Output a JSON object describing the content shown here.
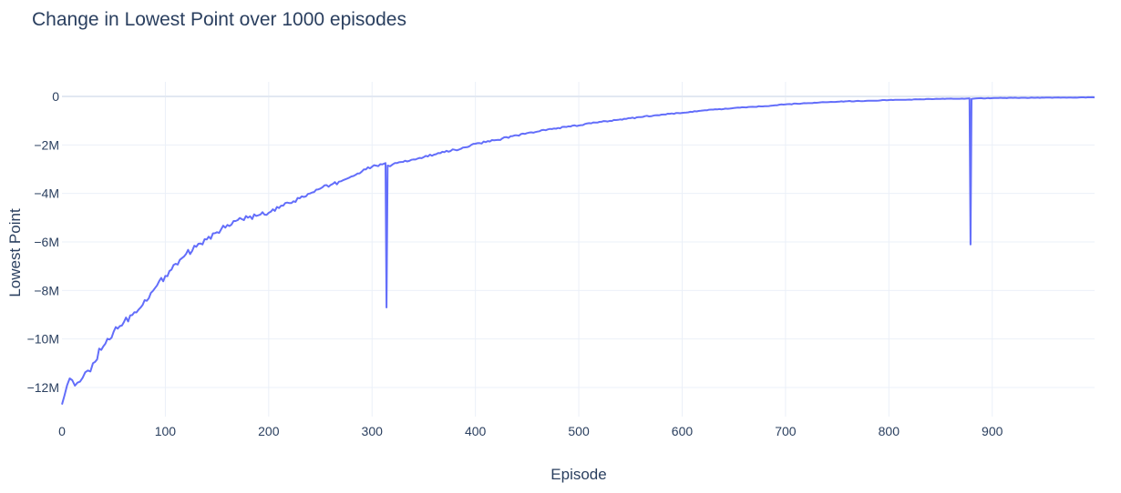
{
  "chart_data": {
    "type": "line",
    "title": "Change in Lowest Point over 1000 episodes",
    "xlabel": "Episode",
    "ylabel": "Lowest Point",
    "xlim": [
      0,
      999
    ],
    "ylim": [
      -13200000,
      600000
    ],
    "grid": true,
    "x_ticks": [
      {
        "value": 0,
        "label": "0"
      },
      {
        "value": 100,
        "label": "100"
      },
      {
        "value": 200,
        "label": "200"
      },
      {
        "value": 300,
        "label": "300"
      },
      {
        "value": 400,
        "label": "400"
      },
      {
        "value": 500,
        "label": "500"
      },
      {
        "value": 600,
        "label": "600"
      },
      {
        "value": 700,
        "label": "700"
      },
      {
        "value": 800,
        "label": "800"
      },
      {
        "value": 900,
        "label": "900"
      }
    ],
    "y_ticks": [
      {
        "value": 0,
        "label": "0"
      },
      {
        "value": -2000000,
        "label": "−2M"
      },
      {
        "value": -4000000,
        "label": "−4M"
      },
      {
        "value": -6000000,
        "label": "−6M"
      },
      {
        "value": -8000000,
        "label": "−8M"
      },
      {
        "value": -10000000,
        "label": "−10M"
      },
      {
        "value": -12000000,
        "label": "−12M"
      }
    ],
    "series": [
      {
        "color": "#636efa",
        "x": [
          0,
          5,
          10,
          15,
          20,
          25,
          30,
          40,
          50,
          60,
          70,
          80,
          90,
          100,
          110,
          120,
          130,
          140,
          150,
          160,
          170,
          180,
          190,
          200,
          210,
          220,
          230,
          240,
          250,
          260,
          270,
          280,
          290,
          300,
          310,
          313,
          314,
          315,
          320,
          330,
          340,
          350,
          360,
          370,
          380,
          390,
          400,
          420,
          440,
          460,
          480,
          500,
          520,
          540,
          560,
          580,
          600,
          620,
          640,
          660,
          680,
          700,
          720,
          740,
          760,
          780,
          800,
          820,
          840,
          860,
          875,
          878,
          879,
          880,
          885,
          900,
          920,
          940,
          960,
          980,
          999
        ],
        "y": [
          -12700000,
          -11900000,
          -11700000,
          -11800000,
          -11600000,
          -11300000,
          -11000000,
          -10300000,
          -9700000,
          -9300000,
          -8900000,
          -8400000,
          -7900000,
          -7400000,
          -6900000,
          -6500000,
          -6200000,
          -5900000,
          -5600000,
          -5300000,
          -5100000,
          -5000000,
          -4900000,
          -4800000,
          -4600000,
          -4400000,
          -4200000,
          -4000000,
          -3800000,
          -3650000,
          -3500000,
          -3300000,
          -3100000,
          -2900000,
          -2800000,
          -2750000,
          -8700000,
          -2850000,
          -2800000,
          -2700000,
          -2600000,
          -2500000,
          -2400000,
          -2300000,
          -2200000,
          -2100000,
          -1950000,
          -1800000,
          -1600000,
          -1450000,
          -1300000,
          -1200000,
          -1050000,
          -950000,
          -850000,
          -750000,
          -680000,
          -580000,
          -520000,
          -450000,
          -400000,
          -330000,
          -280000,
          -240000,
          -200000,
          -180000,
          -150000,
          -130000,
          -110000,
          -90000,
          -90000,
          -80000,
          -6100000,
          -100000,
          -80000,
          -70000,
          -60000,
          -55000,
          -50000,
          -45000,
          -40000
        ]
      }
    ]
  }
}
